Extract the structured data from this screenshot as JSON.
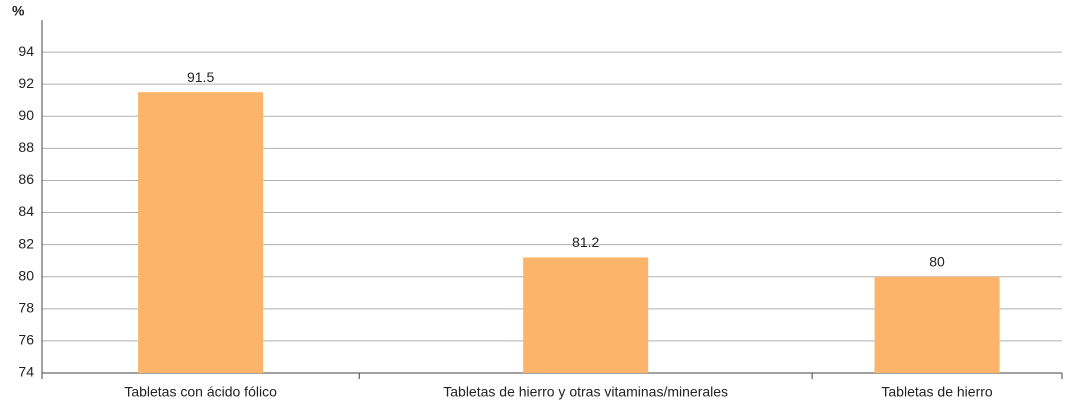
{
  "chart_data": {
    "type": "bar",
    "ylabel": "%",
    "categories": [
      "Tabletas con ácido fólico",
      "Tabletas de hierro y otras vitaminas/minerales",
      "Tabletas de hierro"
    ],
    "values": [
      91.5,
      81.2,
      80
    ],
    "color": "#fbb469",
    "ylim": [
      74,
      96
    ],
    "yticks": [
      74,
      76,
      78,
      80,
      82,
      84,
      86,
      88,
      90,
      92,
      94
    ],
    "grid": true
  }
}
